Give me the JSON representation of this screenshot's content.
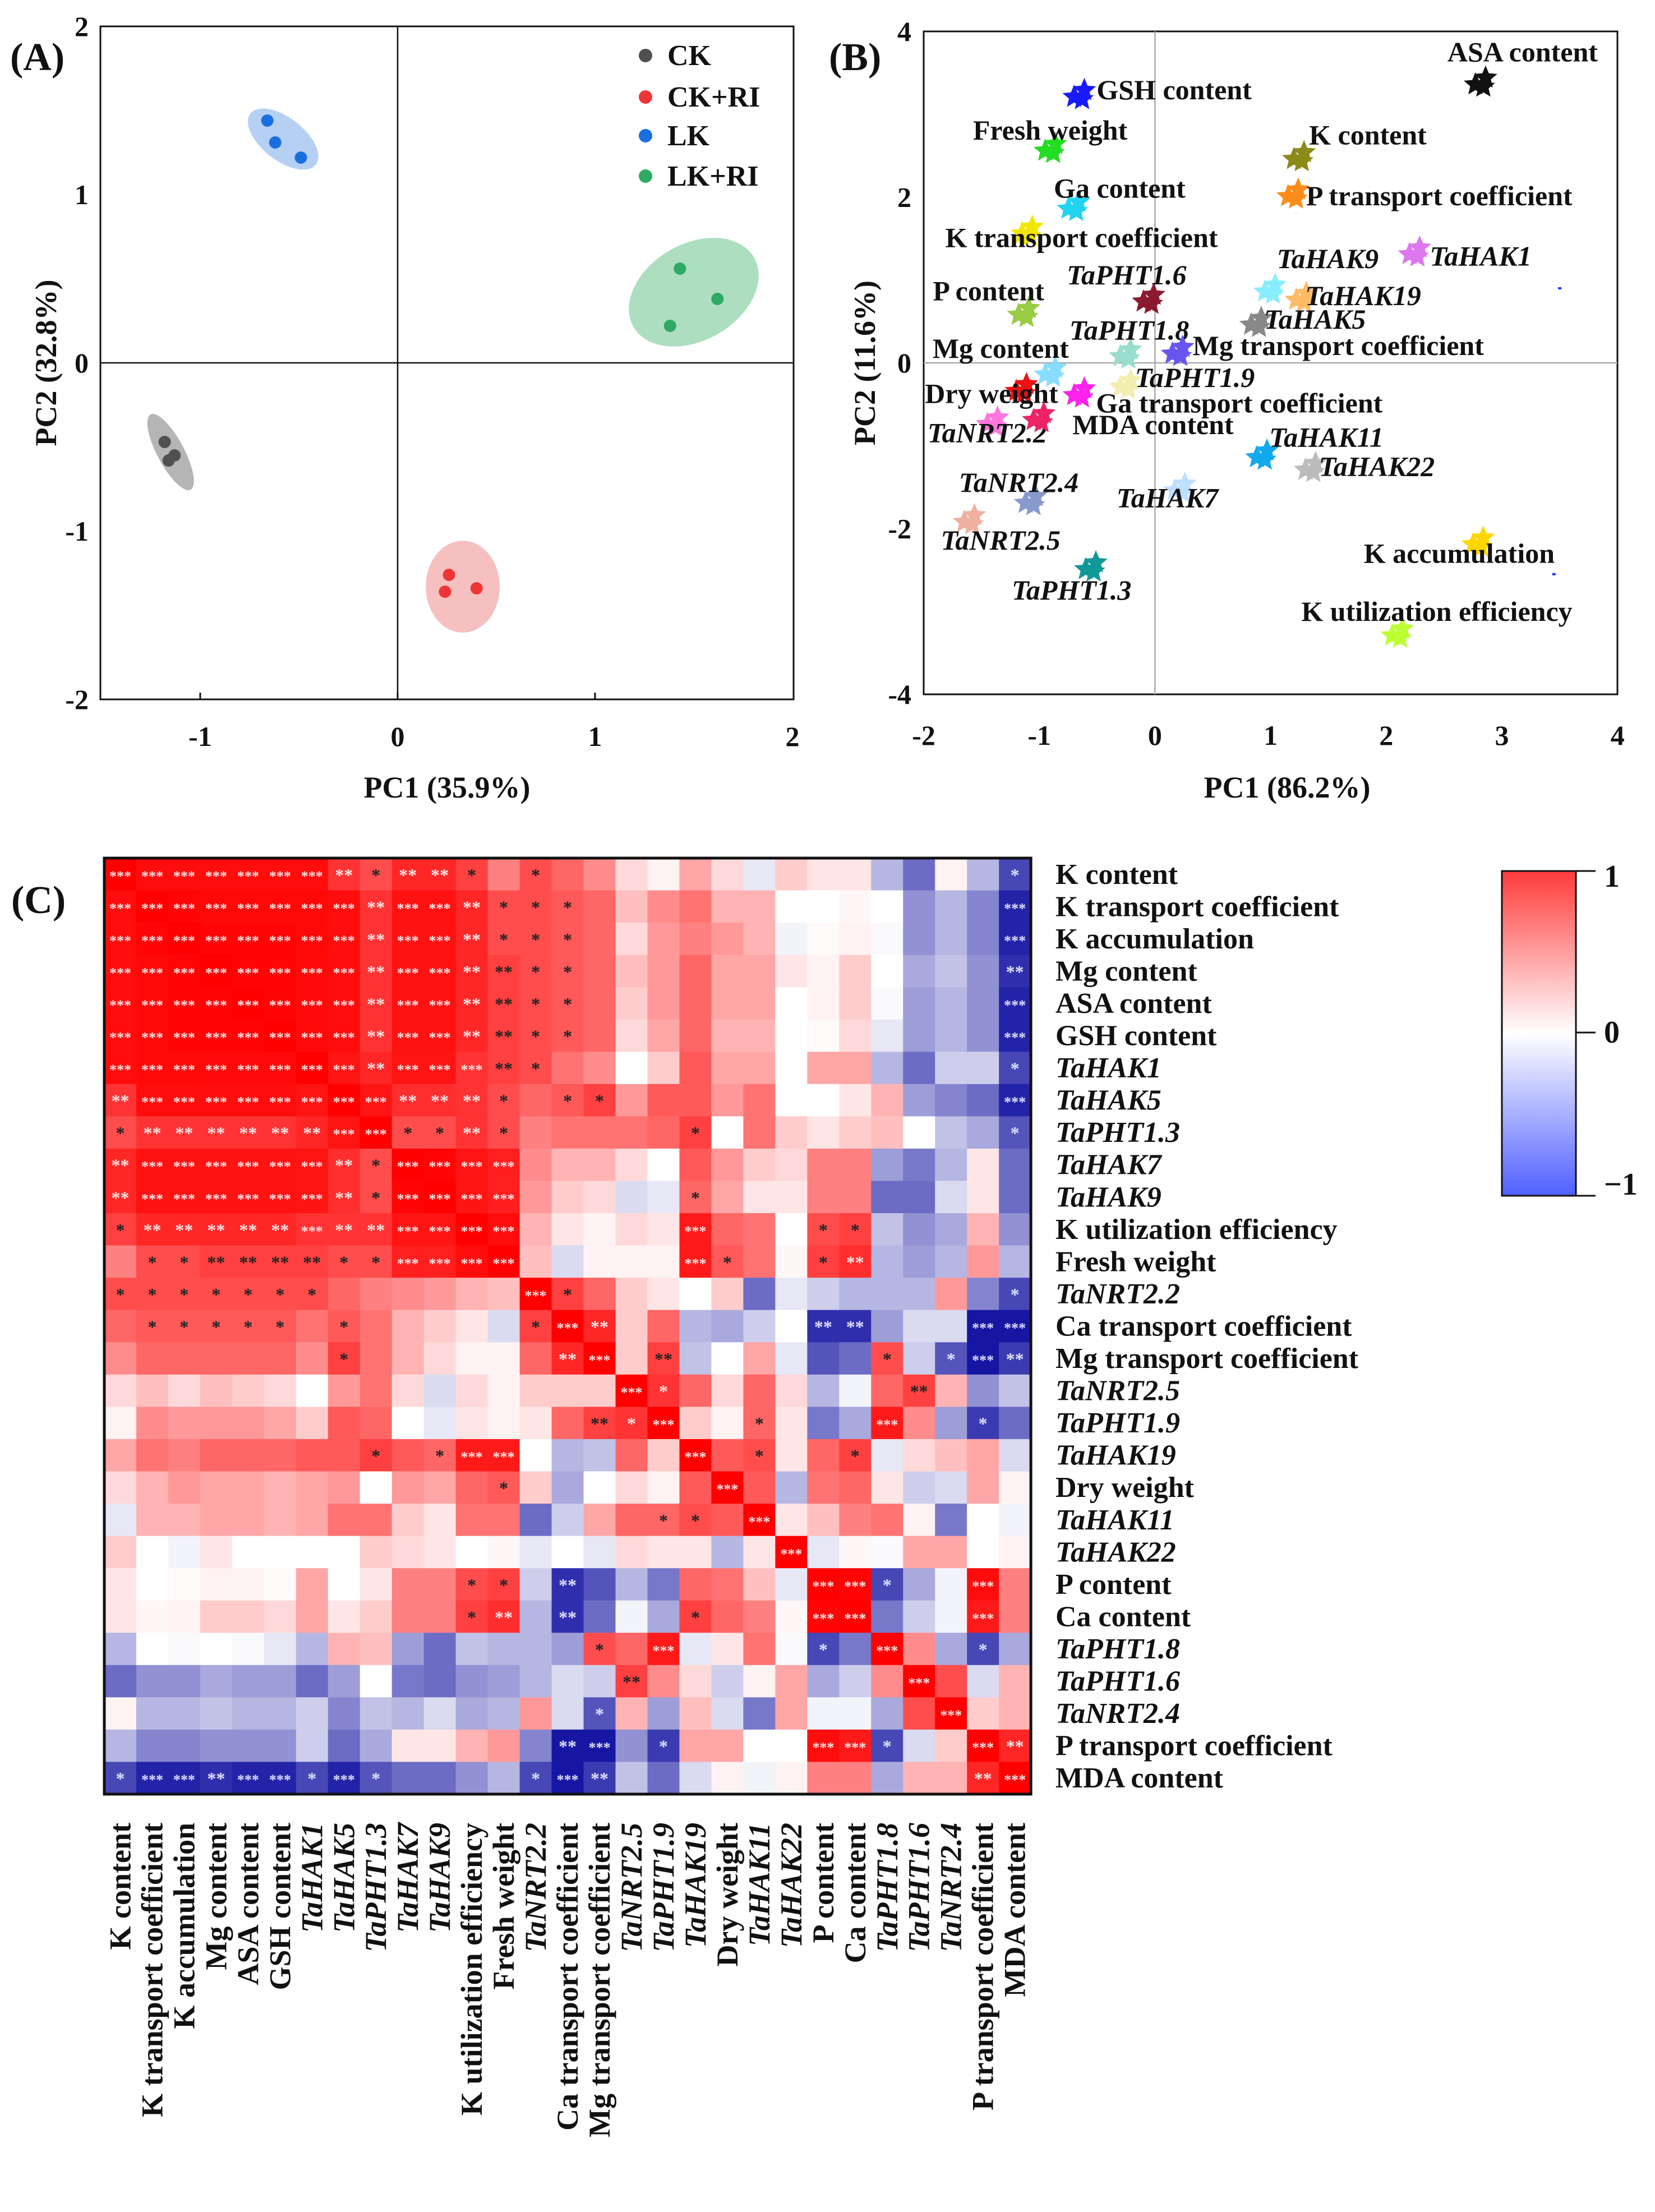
{
  "panel_labels": {
    "a": "(A)",
    "b": "(B)",
    "c": "(C)"
  },
  "chart_data": [
    {
      "type": "scatter",
      "panel": "(A)",
      "xlabel": "PC1 (35.9%)",
      "ylabel": "PC2 (32.8%)",
      "xlim": [
        -1.5,
        2
      ],
      "ylim": [
        -2,
        2
      ],
      "xticks": [
        "-1",
        "0",
        "1",
        "2"
      ],
      "yticks": [
        "2",
        "1",
        "0",
        "-1",
        "-2"
      ],
      "legend": "top-right",
      "grid": false,
      "series": [
        {
          "name": "CK",
          "color": "#505050",
          "ellipse_color": "#a8a8a8",
          "points": [
            [
              -1.18,
              -0.47
            ],
            [
              -1.16,
              -0.58
            ],
            [
              -1.13,
              -0.55
            ]
          ]
        },
        {
          "name": "CK+RI",
          "color": "#ee3535",
          "ellipse_color": "#f5b5b5",
          "points": [
            [
              0.26,
              -1.26
            ],
            [
              0.24,
              -1.36
            ],
            [
              0.4,
              -1.34
            ]
          ]
        },
        {
          "name": "LK",
          "color": "#1a6fe0",
          "ellipse_color": "#a9c8f2",
          "points": [
            [
              -0.66,
              1.44
            ],
            [
              -0.62,
              1.31
            ],
            [
              -0.49,
              1.22
            ]
          ]
        },
        {
          "name": "LK+RI",
          "color": "#2eaa62",
          "ellipse_color": "#9fd8b4",
          "points": [
            [
              1.43,
              0.56
            ],
            [
              1.62,
              0.38
            ],
            [
              1.38,
              0.22
            ]
          ]
        }
      ]
    },
    {
      "type": "scatter",
      "panel": "(B)",
      "xlabel": "PC1 (86.2%)",
      "ylabel": "PC2 (11.6%)",
      "xlim": [
        -2,
        4
      ],
      "ylim": [
        -4,
        4
      ],
      "xticks": [
        "-2",
        "-1",
        "0",
        "1",
        "2",
        "3",
        "4"
      ],
      "yticks": [
        "4",
        "2",
        "0",
        "-2",
        "-4"
      ],
      "grid": false,
      "points": [
        {
          "label": "ASA content",
          "x": 2.82,
          "y": 3.4,
          "color": "#111111",
          "italic": false
        },
        {
          "label": "GSH content",
          "x": -0.65,
          "y": 3.25,
          "color": "#1a1aff",
          "italic": false
        },
        {
          "label": "Fresh weight",
          "x": -0.9,
          "y": 2.6,
          "color": "#22dd22",
          "italic": false
        },
        {
          "label": "K content",
          "x": 1.25,
          "y": 2.5,
          "color": "#8b8b1a",
          "italic": false
        },
        {
          "label": "Ga content",
          "x": -0.7,
          "y": 1.9,
          "color": "#22d4f0",
          "italic": false
        },
        {
          "label": "P transport coefficient",
          "x": 1.2,
          "y": 2.05,
          "color": "#ff8c1a",
          "italic": false
        },
        {
          "label": "K transport coefficient",
          "x": -1.1,
          "y": 1.6,
          "color": "#f2e600",
          "italic": false
        },
        {
          "label": "TaHAK1",
          "x": 2.25,
          "y": 1.35,
          "color": "#dd77ee",
          "italic": true
        },
        {
          "label": "TaHAK9",
          "x": 1.0,
          "y": 0.9,
          "color": "#88eeff",
          "italic": true
        },
        {
          "label": "TaHAK19",
          "x": 1.27,
          "y": 0.8,
          "color": "#ffbb66",
          "italic": true
        },
        {
          "label": "TaPHT1.6",
          "x": -0.05,
          "y": 0.78,
          "color": "#8b1a30",
          "italic": true
        },
        {
          "label": "P content",
          "x": -1.13,
          "y": 0.62,
          "color": "#99cc44",
          "italic": false
        },
        {
          "label": "TaHAK5",
          "x": 0.88,
          "y": 0.5,
          "color": "#888888",
          "italic": true
        },
        {
          "label": "TaPHT1.8",
          "x": -0.25,
          "y": 0.12,
          "color": "#99ddcc",
          "italic": true
        },
        {
          "label": "Mg transport coefficient",
          "x": 0.2,
          "y": 0.15,
          "color": "#6655ee",
          "italic": false
        },
        {
          "label": "Mg content",
          "x": -0.9,
          "y": -0.1,
          "color": "#88ddff",
          "italic": false
        },
        {
          "label": "TaPHT1.9",
          "x": -0.25,
          "y": -0.25,
          "color": "#f3eeb0",
          "italic": true
        },
        {
          "label": "Dry weight",
          "x": -1.15,
          "y": -0.3,
          "color": "#ee1111",
          "italic": false
        },
        {
          "label": "Ga transport coefficient",
          "x": -0.65,
          "y": -0.35,
          "color": "#ff22ee",
          "italic": false
        },
        {
          "label": "TaNRT2.2",
          "x": -1.4,
          "y": -0.7,
          "color": "#ff77dd",
          "italic": true
        },
        {
          "label": "MDA content",
          "x": -1.0,
          "y": -0.65,
          "color": "#ee2266",
          "italic": false
        },
        {
          "label": "TaHAK11",
          "x": 0.93,
          "y": -1.1,
          "color": "#11aaee",
          "italic": true
        },
        {
          "label": "TaHAK22",
          "x": 1.35,
          "y": -1.25,
          "color": "#bbbbbb",
          "italic": true
        },
        {
          "label": "TaHAK7",
          "x": 0.22,
          "y": -1.5,
          "color": "#bde0ff",
          "italic": true
        },
        {
          "label": "TaNRT2.4",
          "x": -1.07,
          "y": -1.65,
          "color": "#8899cc",
          "italic": true
        },
        {
          "label": "TaNRT2.5",
          "x": -1.6,
          "y": -1.88,
          "color": "#f0b0a0",
          "italic": true
        },
        {
          "label": "TaPHT1.3",
          "x": -0.55,
          "y": -2.45,
          "color": "#119999",
          "italic": true
        },
        {
          "label": "K accumulation",
          "x": 2.8,
          "y": -2.15,
          "color": "#ffd700",
          "italic": false
        },
        {
          "label": "K utilization efficiency",
          "x": 2.1,
          "y": -3.25,
          "color": "#bbff33",
          "italic": false
        }
      ],
      "extra_dots": [
        [
          3.5,
          0.9
        ],
        [
          3.45,
          -2.55
        ]
      ]
    },
    {
      "type": "heatmap",
      "panel": "(C)",
      "variables": [
        "K content",
        "K transport coefficient",
        "K accumulation",
        "Mg content",
        "ASA content",
        "GSH content",
        "TaHAK1",
        "TaHAK5",
        "TaPHT1.3",
        "TaHAK7",
        "TaHAK9",
        "K utilization efficiency",
        "Fresh weight",
        "TaNRT2.2",
        "Ca transport coefficient",
        "Mg transport coefficient",
        "TaNRT2.5",
        "TaPHT1.9",
        "TaHAK19",
        "Dry weight",
        "TaHAK11",
        "TaHAK22",
        "P content",
        "Ca content",
        "TaPHT1.8",
        "TaPHT1.6",
        "TaNRT2.4",
        "P transport coefficient",
        "MDA content"
      ],
      "italic": [
        false,
        false,
        false,
        false,
        false,
        false,
        true,
        true,
        true,
        true,
        true,
        false,
        false,
        true,
        false,
        false,
        true,
        true,
        true,
        false,
        true,
        true,
        false,
        false,
        true,
        true,
        true,
        false,
        false
      ],
      "upper_triangle": [
        [
          0.95,
          0.95,
          0.95,
          0.95,
          0.95,
          0.95,
          0.8,
          0.7,
          0.85,
          0.85,
          0.75,
          0.5,
          0.7,
          0.6,
          0.45,
          0.15,
          0.05,
          0.35,
          0.15,
          -0.1,
          0.2,
          0.1,
          0.1,
          -0.3,
          -0.6,
          0.05,
          -0.3,
          -0.75
        ],
        [
          0.98,
          0.97,
          0.97,
          0.97,
          0.97,
          0.95,
          0.8,
          0.93,
          0.93,
          0.85,
          0.7,
          0.7,
          0.65,
          0.6,
          0.25,
          0.45,
          0.55,
          0.3,
          0.3,
          0,
          0,
          0.03,
          0,
          -0.45,
          -0.3,
          -0.5,
          -0.9
        ],
        [
          0.98,
          0.98,
          0.98,
          0.97,
          0.95,
          0.8,
          0.93,
          0.93,
          0.85,
          0.7,
          0.7,
          0.65,
          0.6,
          0.15,
          0.4,
          0.5,
          0.4,
          0.3,
          -0.05,
          0.02,
          0.05,
          -0.02,
          -0.45,
          -0.3,
          -0.5,
          -0.9
        ],
        [
          0.98,
          0.98,
          0.96,
          0.95,
          0.8,
          0.93,
          0.93,
          0.85,
          0.75,
          0.7,
          0.65,
          0.6,
          0.25,
          0.4,
          0.6,
          0.35,
          0.35,
          0.1,
          0.05,
          0.2,
          0,
          -0.35,
          -0.25,
          -0.45,
          -0.85
        ],
        [
          0.98,
          0.96,
          0.95,
          0.8,
          0.93,
          0.93,
          0.85,
          0.75,
          0.7,
          0.65,
          0.6,
          0.2,
          0.4,
          0.6,
          0.35,
          0.35,
          0,
          0.05,
          0.2,
          -0.02,
          -0.4,
          -0.3,
          -0.45,
          -0.9
        ],
        [
          0.96,
          0.95,
          0.8,
          0.93,
          0.93,
          0.85,
          0.75,
          0.7,
          0.65,
          0.6,
          0.15,
          0.35,
          0.6,
          0.3,
          0.3,
          0,
          0.02,
          0.15,
          -0.1,
          -0.4,
          -0.3,
          -0.45,
          -0.9
        ],
        [
          0.92,
          0.85,
          0.92,
          0.92,
          0.8,
          0.75,
          0.7,
          0.55,
          0.45,
          0,
          0.2,
          0.65,
          0.35,
          0.35,
          0,
          0.35,
          0.35,
          -0.3,
          -0.6,
          -0.2,
          -0.2,
          -0.75
        ],
        [
          0.92,
          0.82,
          0.82,
          0.8,
          0.7,
          0.6,
          0.65,
          0.75,
          0.4,
          0.65,
          0.65,
          0.4,
          0.55,
          0,
          0,
          0.1,
          0.3,
          -0.4,
          -0.5,
          -0.6,
          -0.9
        ],
        [
          0.7,
          0.7,
          0.8,
          0.7,
          0.5,
          0.55,
          0.55,
          0.55,
          0.6,
          0.75,
          0,
          0.55,
          0.2,
          0.1,
          0.2,
          0.25,
          0,
          -0.25,
          -0.35,
          -0.7
        ],
        [
          0.98,
          0.92,
          0.88,
          0.45,
          0.3,
          0.3,
          0.15,
          0,
          0.65,
          0.4,
          0.2,
          0.15,
          0.5,
          0.5,
          -0.4,
          -0.55,
          -0.3,
          0.1,
          -0.6
        ],
        [
          0.92,
          0.88,
          0.4,
          0.2,
          0.15,
          -0.15,
          -0.1,
          0.6,
          0.35,
          0.1,
          0.1,
          0.5,
          0.5,
          -0.6,
          -0.6,
          -0.15,
          0.1,
          -0.6
        ],
        [
          0.95,
          0.3,
          0.1,
          0.05,
          0.15,
          0.1,
          0.9,
          0.6,
          0.55,
          0,
          0.7,
          0.75,
          -0.25,
          -0.45,
          -0.35,
          0.3,
          -0.45
        ],
        [
          0.25,
          -0.15,
          0.05,
          0.05,
          0.05,
          0.9,
          0.65,
          0.55,
          0.03,
          0.75,
          0.82,
          -0.3,
          -0.4,
          -0.3,
          0.4,
          -0.3
        ],
        [
          0.75,
          0.6,
          0.2,
          0.1,
          0,
          0.2,
          -0.6,
          -0.1,
          -0.2,
          -0.3,
          -0.3,
          -0.3,
          0.4,
          -0.5,
          -0.75
        ],
        [
          0.85,
          0.2,
          0.6,
          -0.3,
          -0.35,
          -0.2,
          0,
          -0.85,
          -0.85,
          -0.4,
          -0.15,
          -0.15,
          -0.95,
          -0.95
        ],
        [
          0.2,
          0.75,
          -0.25,
          0,
          0.35,
          -0.1,
          -0.7,
          -0.6,
          0.7,
          -0.2,
          -0.7,
          -0.95,
          -0.8
        ],
        [
          0.8,
          0.6,
          0.15,
          0.6,
          0.15,
          -0.3,
          -0.05,
          0.6,
          0.75,
          0.3,
          -0.45,
          -0.25
        ],
        [
          0.2,
          0.05,
          0.6,
          0.1,
          -0.55,
          -0.35,
          0.9,
          0.45,
          -0.4,
          -0.8,
          -0.6
        ],
        [
          0.65,
          0.7,
          0.1,
          0.6,
          0.75,
          -0.1,
          0.15,
          0.25,
          0.35,
          -0.15
        ],
        [
          0.65,
          -0.3,
          0.55,
          0.6,
          0.1,
          -0.2,
          -0.15,
          0.35,
          0.05
        ],
        [
          0.1,
          0.25,
          0.5,
          0.55,
          0.05,
          -0.55,
          0,
          -0.05
        ],
        [
          -0.1,
          0.03,
          -0.02,
          0.35,
          0.35,
          0,
          0.05
        ],
        [
          0.98,
          -0.75,
          -0.35,
          -0.05,
          0.95,
          0.5
        ],
        [
          -0.55,
          -0.2,
          -0.05,
          0.9,
          0.5
        ],
        [
          0.45,
          -0.35,
          -0.75,
          -0.35
        ],
        [
          0.7,
          -0.15,
          0.3
        ],
        [
          0.2,
          0.3
        ],
        [
          0.85
        ]
      ],
      "significance": [
        {
          "0-6": "***",
          "7": "**",
          "8": "*",
          "9-10": "**",
          "11": "*",
          "13": "*",
          "28": "*"
        },
        {
          "0-7": "***",
          "8": "**",
          "9-10": "***",
          "11": "**",
          "12-14": "*",
          "28": "***"
        },
        {
          "0-7": "***",
          "8": "**",
          "9-10": "***",
          "11": "**",
          "12-14": "*",
          "28": "***"
        },
        {
          "0-7": "***",
          "8": "**",
          "9-10": "***",
          "11-12": "**",
          "13-14": "*",
          "28": "**"
        },
        {
          "0-7": "***",
          "8": "**",
          "9-10": "***",
          "11-12": "**",
          "13-14": "*",
          "28": "***"
        },
        {
          "0-7": "***",
          "8": "**",
          "9-10": "***",
          "11-12": "**",
          "13-14": "*",
          "28": "***"
        },
        {
          "0-7": "***",
          "8": "**",
          "9-11": "***",
          "12": "**",
          "13": "*",
          "28": "*"
        },
        {
          "0": "**",
          "1-8": "***",
          "9-11": "**",
          "12": "*",
          "14-15": "*",
          "28": "***"
        },
        {
          "0": "*",
          "1-6": "**",
          "7-8": "***",
          "9-10": "*",
          "11": "**",
          "12": "*",
          "18": "*",
          "28": "*"
        },
        {
          "0": "**",
          "1-6": "***",
          "7": "**",
          "8": "*",
          "9-12": "***"
        },
        {
          "0": "**",
          "1-6": "***",
          "7": "**",
          "8": "*",
          "9-12": "***",
          "18": "*"
        },
        {
          "0": "*",
          "1-5": "**",
          "6": "***",
          "7-8": "**",
          "9-12": "***",
          "18": "***",
          "22-23": "*"
        },
        {
          "1-2": "*",
          "3-6": "**",
          "7-8": "*",
          "9-12": "***",
          "18": "***",
          "19": "*",
          "22": "*",
          "23": "**"
        },
        {
          "0-6": "*",
          "13": "***",
          "14": "*",
          "28": "*"
        },
        {
          "1-5": "*",
          "7": "*",
          "13": "*",
          "14": "***",
          "15": "**",
          "22-23": "**",
          "27-28": "***"
        },
        {
          "7": "*",
          "14": "**",
          "15": "***",
          "17": "**",
          "24": "*",
          "26": "*",
          "27": "***",
          "28": "**"
        },
        {
          "16": "***",
          "17": "*",
          "25": "**"
        },
        {
          "15": "**",
          "16": "*",
          "17": "***",
          "20": "*",
          "24": "***",
          "27": "*"
        },
        {
          "8": "*",
          "10": "*",
          "11-12": "***",
          "18": "***",
          "20": "*",
          "23": "*"
        },
        {
          "12": "*",
          "19": "***"
        },
        {
          "17-18": "*",
          "20": "***"
        },
        {
          "21": "***"
        },
        {
          "11-12": "*",
          "14": "**",
          "22-23": "***",
          "24": "*",
          "27": "***"
        },
        {
          "11": "*",
          "12": "**",
          "14": "**",
          "18": "*",
          "22-23": "***",
          "27": "***"
        },
        {
          "15": "*",
          "17": "***",
          "22": "*",
          "24": "***",
          "27": "*"
        },
        {
          "16": "**",
          "25": "***"
        },
        {
          "15": "*",
          "26": "***"
        },
        {
          "14": "**",
          "15": "***",
          "17": "*",
          "22-23": "***",
          "24": "*",
          "27": "***",
          "28": "**"
        },
        {
          "0": "*",
          "1-2": "***",
          "3": "**",
          "4-5": "***",
          "6": "*",
          "7": "***",
          "8": "*",
          "13": "*",
          "14": "***",
          "15": "**",
          "27": "**",
          "28": "***"
        }
      ],
      "colorbar": {
        "ticks": [
          "1",
          "0",
          "−1"
        ],
        "range": [
          -1,
          1
        ],
        "max_color": "#ff0000",
        "mid_color": "#ffffff",
        "min_color": "#0a0a9e"
      }
    }
  ]
}
